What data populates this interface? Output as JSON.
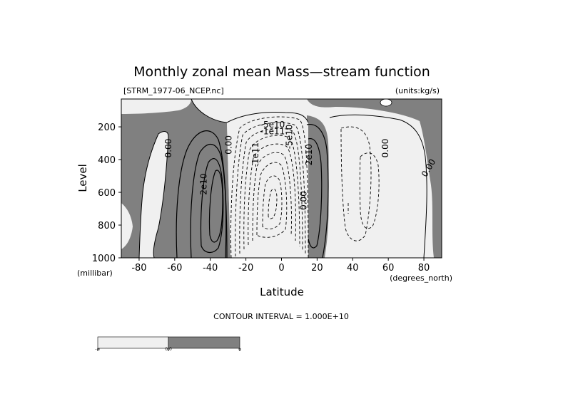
{
  "chart_data": {
    "type": "contour",
    "title": "Monthly zonal mean Mass—stream function",
    "source_file": "[STRM_1977-06_NCEP.nc]",
    "units_label": "(units:kg/s)",
    "xlabel": "Latitude",
    "x_units": "(degrees_north)",
    "ylabel": "Level",
    "y_units": "(millibar)",
    "xlim": [
      -90,
      90
    ],
    "ylim": [
      1000,
      30
    ],
    "x_ticks": [
      -80,
      -60,
      -40,
      -20,
      0,
      20,
      40,
      60,
      80
    ],
    "y_ticks": [
      200,
      400,
      600,
      800,
      1000
    ],
    "contour_interval_text": "CONTOUR INTERVAL = 1.000E+10",
    "contour_interval": 10000000000,
    "shading": {
      "negative": "#f0f0f0",
      "positive": "#808080",
      "line": "#000000"
    },
    "colorbar_labels": [
      "-∞",
      "0.0",
      "∞"
    ],
    "contour_labels": [
      {
        "text": "0.00",
        "lat": -62,
        "level": 330,
        "rotate": -90
      },
      {
        "text": "2e10",
        "lat": -42,
        "level": 550,
        "rotate": -90
      },
      {
        "text": "0.00",
        "lat": -28,
        "level": 310,
        "rotate": -90
      },
      {
        "text": "-1e11",
        "lat": -13,
        "level": 370,
        "rotate": -90
      },
      {
        "text": "-5e10",
        "lat": -5,
        "level": 205,
        "rotate": 0
      },
      {
        "text": "-1e11",
        "lat": -5,
        "level": 245,
        "rotate": 0
      },
      {
        "text": "-5e10",
        "lat": 6,
        "level": 260,
        "rotate": -90
      },
      {
        "text": "2e10",
        "lat": 17,
        "level": 370,
        "rotate": -90
      },
      {
        "text": "0.00",
        "lat": 14,
        "level": 650,
        "rotate": -90
      },
      {
        "text": "0.00",
        "lat": 60,
        "level": 330,
        "rotate": -90
      },
      {
        "text": "0.00",
        "lat": 84,
        "level": 460,
        "rotate": -60
      }
    ]
  }
}
